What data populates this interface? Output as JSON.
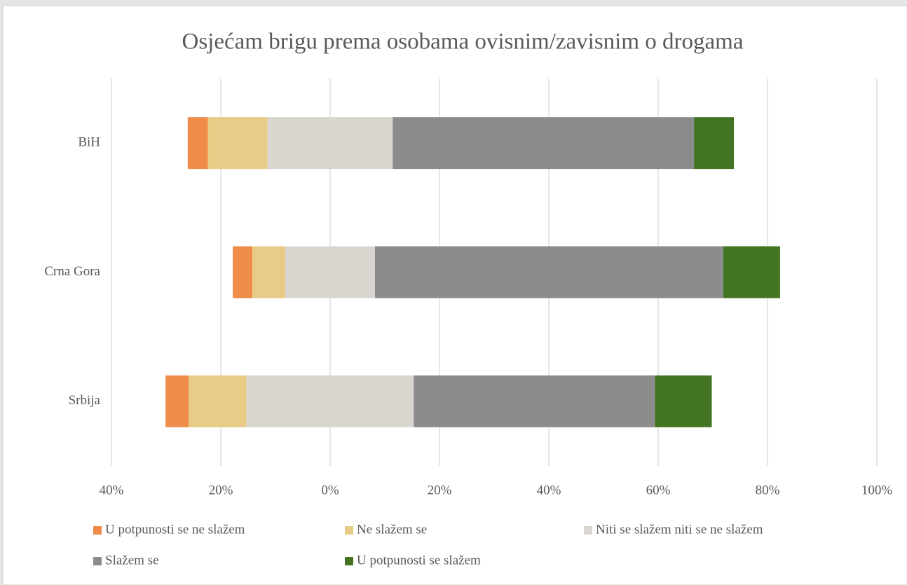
{
  "chart_data": {
    "type": "diverging_stacked_bar",
    "title": "Osjećam brigu prema osobama ovisnim/zavisnim o drogama",
    "categories": [
      "BiH",
      "Crna Gora",
      "Srbija"
    ],
    "series": [
      {
        "name": "U potpunosti se ne slažem",
        "color": "#f08c4a",
        "values": [
          3.7,
          3.6,
          4.2
        ]
      },
      {
        "name": "Ne slažem se",
        "color": "#e8cb86",
        "values": [
          10.9,
          6.0,
          10.6
        ]
      },
      {
        "name": "Niti se slažem niti se ne slažem",
        "color": "#d9d5cf",
        "values": [
          22.9,
          16.4,
          30.6
        ]
      },
      {
        "name": "Slažem se",
        "color": "#8c8c8c",
        "values": [
          55.1,
          63.7,
          44.1
        ]
      },
      {
        "name": "U potpunosti se slažem",
        "color": "#427421",
        "values": [
          7.3,
          10.4,
          10.4
        ]
      }
    ],
    "xlim": [
      -40,
      100
    ],
    "xticks": [
      {
        "value": -40,
        "label": "40%"
      },
      {
        "value": -20,
        "label": "20%"
      },
      {
        "value": 0,
        "label": "0%"
      },
      {
        "value": 20,
        "label": "20%"
      },
      {
        "value": 40,
        "label": "40%"
      },
      {
        "value": 60,
        "label": "60%"
      },
      {
        "value": 80,
        "label": "80%"
      },
      {
        "value": 100,
        "label": "100%"
      }
    ],
    "grid": true,
    "legend": "bottom"
  }
}
